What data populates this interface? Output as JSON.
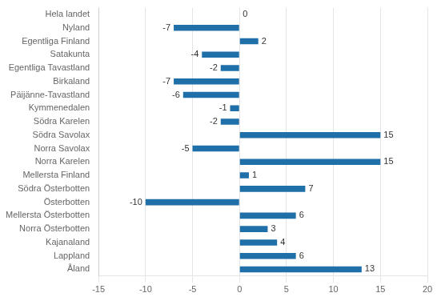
{
  "chart_data": {
    "type": "bar",
    "orientation": "horizontal",
    "categories": [
      "Hela landet",
      "Nyland",
      "Egentliga Finland",
      "Satakunta",
      "Egentliga Tavastland",
      "Birkaland",
      "Päijänne-Tavastland",
      "Kymmenedalen",
      "Södra Karelen",
      "Södra Savolax",
      "Norra Savolax",
      "Norra Karelen",
      "Mellersta Finland",
      "Södra Österbotten",
      "Österbotten",
      "Mellersta Österbotten",
      "Norra Österbotten",
      "Kajanaland",
      "Lappland",
      "Åland"
    ],
    "values": [
      0,
      -7,
      2,
      -4,
      -2,
      -7,
      -6,
      -1,
      -2,
      15,
      -5,
      15,
      1,
      7,
      -10,
      6,
      3,
      4,
      6,
      13
    ],
    "color": "#1F6FA8",
    "xlim": [
      -15,
      20
    ],
    "xticks": [
      -15,
      -10,
      -5,
      0,
      5,
      10,
      15,
      20
    ],
    "grid": true,
    "data_labels": true
  }
}
